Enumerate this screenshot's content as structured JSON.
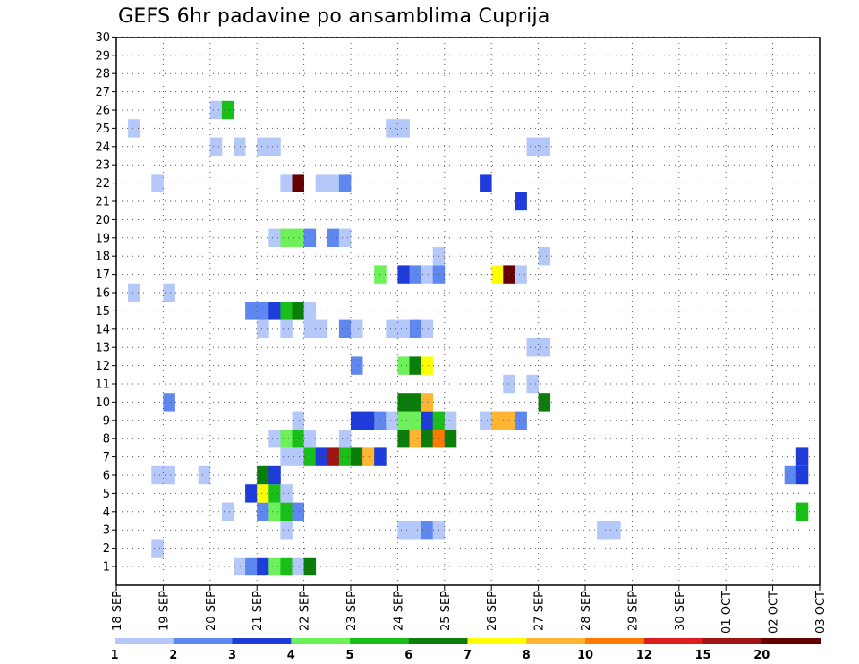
{
  "title": "GEFS 6hr padavine po ansamblima Cuprija",
  "chart_data": {
    "type": "heatmap",
    "title": "GEFS 6hr padavine po ansamblima Cuprija",
    "xlabel": "",
    "ylabel": "",
    "x_tick_labels": [
      "18 SEP",
      "19 SEP",
      "20 SEP",
      "21 SEP",
      "22 SEP",
      "23 SEP",
      "24 SEP",
      "25 SEP",
      "26 SEP",
      "27 SEP",
      "28 SEP",
      "29 SEP",
      "30 SEP",
      "01 OCT",
      "02 OCT",
      "03 OCT"
    ],
    "y_tick_labels": [
      "1",
      "2",
      "3",
      "4",
      "5",
      "6",
      "7",
      "8",
      "9",
      "10",
      "11",
      "12",
      "13",
      "14",
      "15",
      "16",
      "17",
      "18",
      "19",
      "20",
      "21",
      "22",
      "23",
      "24",
      "25",
      "26",
      "27",
      "28",
      "29",
      "30"
    ],
    "time_step_hours": 6,
    "steps_per_day": 4,
    "ylim": [
      1,
      30
    ],
    "grid": true,
    "legend_placement": "bottom",
    "colorbar": {
      "tick_labels": [
        "1",
        "2",
        "3",
        "4",
        "5",
        "6",
        "7",
        "8",
        "10",
        "12",
        "15",
        "20"
      ],
      "colors": [
        "#b4c8fa",
        "#5f87f0",
        "#1e3cdc",
        "#6ef05a",
        "#19be19",
        "#0a7d0a",
        "#ffff00",
        "#ffb432",
        "#ff7800",
        "#dc1e1e",
        "#a01414",
        "#640000"
      ]
    },
    "cells": [
      [
        2.5,
        1,
        0
      ],
      [
        2.75,
        1,
        1
      ],
      [
        3,
        1,
        2
      ],
      [
        3.25,
        1,
        3
      ],
      [
        3.5,
        1,
        4
      ],
      [
        3.75,
        1,
        0
      ],
      [
        4,
        1,
        5
      ],
      [
        0.75,
        2,
        0
      ],
      [
        3.5,
        3,
        0
      ],
      [
        6.0,
        3,
        0
      ],
      [
        6.25,
        3,
        0
      ],
      [
        6.5,
        3,
        1
      ],
      [
        6.75,
        3,
        0
      ],
      [
        10.25,
        3,
        0
      ],
      [
        10.5,
        3,
        0
      ],
      [
        2.25,
        4,
        0
      ],
      [
        3,
        4,
        1
      ],
      [
        3.25,
        4,
        3
      ],
      [
        3.5,
        4,
        4
      ],
      [
        3.75,
        4,
        1
      ],
      [
        14.5,
        4,
        4
      ],
      [
        2.75,
        5,
        2
      ],
      [
        3,
        5,
        6
      ],
      [
        3.25,
        5,
        4
      ],
      [
        3.5,
        5,
        0
      ],
      [
        0.75,
        6,
        0
      ],
      [
        1.0,
        6,
        0
      ],
      [
        1.75,
        6,
        0
      ],
      [
        3,
        6,
        5
      ],
      [
        3.25,
        6,
        2
      ],
      [
        14.25,
        6,
        1
      ],
      [
        14.5,
        6,
        2
      ],
      [
        3.5,
        7,
        0
      ],
      [
        3.75,
        7,
        0
      ],
      [
        4,
        7,
        4
      ],
      [
        4.25,
        7,
        2
      ],
      [
        4.5,
        7,
        10
      ],
      [
        4.75,
        7,
        4
      ],
      [
        5,
        7,
        5
      ],
      [
        5.25,
        7,
        7
      ],
      [
        5.5,
        7,
        2
      ],
      [
        14.5,
        7,
        2
      ],
      [
        4.75,
        8,
        0
      ],
      [
        3.25,
        8,
        0
      ],
      [
        3.5,
        8,
        3
      ],
      [
        3.75,
        8,
        4
      ],
      [
        4,
        8,
        0
      ],
      [
        6,
        8,
        5
      ],
      [
        6.25,
        8,
        7
      ],
      [
        6.5,
        8,
        5
      ],
      [
        6.75,
        8,
        8
      ],
      [
        7,
        8,
        5
      ],
      [
        3.75,
        9,
        0
      ],
      [
        5,
        9,
        2
      ],
      [
        5.25,
        9,
        2
      ],
      [
        5.5,
        9,
        1
      ],
      [
        5.75,
        9,
        0
      ],
      [
        6,
        9,
        3
      ],
      [
        6.25,
        9,
        3
      ],
      [
        6.5,
        9,
        2
      ],
      [
        6.75,
        9,
        4
      ],
      [
        7,
        9,
        0
      ],
      [
        7.75,
        9,
        0
      ],
      [
        8,
        9,
        7
      ],
      [
        8.25,
        9,
        7
      ],
      [
        8.5,
        9,
        1
      ],
      [
        1.0,
        10,
        1
      ],
      [
        6,
        10,
        5
      ],
      [
        6.25,
        10,
        5
      ],
      [
        6.5,
        10,
        7
      ],
      [
        9.0,
        10,
        5
      ],
      [
        8.25,
        11,
        0
      ],
      [
        8.75,
        11,
        0
      ],
      [
        5,
        12,
        1
      ],
      [
        6,
        12,
        3
      ],
      [
        6.25,
        12,
        5
      ],
      [
        6.5,
        12,
        6
      ],
      [
        8.75,
        13,
        0
      ],
      [
        9.0,
        13,
        0
      ],
      [
        3.5,
        14,
        0
      ],
      [
        4,
        14,
        0
      ],
      [
        4.25,
        14,
        0
      ],
      [
        4.75,
        14,
        1
      ],
      [
        5,
        14,
        0
      ],
      [
        5.75,
        14,
        0
      ],
      [
        6,
        14,
        7
      ],
      [
        6.25,
        14,
        1
      ],
      [
        6.5,
        14,
        0
      ],
      [
        3.0,
        14,
        0
      ],
      [
        6.0,
        14,
        0
      ],
      [
        3,
        15,
        1
      ],
      [
        3.25,
        15,
        2
      ],
      [
        3.5,
        15,
        4
      ],
      [
        3.75,
        15,
        5
      ],
      [
        4,
        15,
        0
      ],
      [
        2.75,
        15,
        1
      ],
      [
        0.25,
        16,
        0
      ],
      [
        1.0,
        16,
        0
      ],
      [
        5.5,
        17,
        3
      ],
      [
        6,
        17,
        2
      ],
      [
        6.25,
        17,
        1
      ],
      [
        6.5,
        17,
        0
      ],
      [
        6.75,
        17,
        1
      ],
      [
        8.0,
        17,
        6
      ],
      [
        8.25,
        17,
        11
      ],
      [
        8.5,
        17,
        0
      ],
      [
        6.75,
        18,
        0
      ],
      [
        9.0,
        18,
        0
      ],
      [
        3.25,
        19,
        0
      ],
      [
        3.5,
        19,
        3
      ],
      [
        3.75,
        19,
        3
      ],
      [
        4,
        19,
        1
      ],
      [
        4.5,
        19,
        1
      ],
      [
        4.75,
        19,
        0
      ],
      [
        8.5,
        21,
        2
      ],
      [
        7.75,
        22,
        2
      ],
      [
        0.75,
        22,
        0
      ],
      [
        3.5,
        22,
        0
      ],
      [
        3.75,
        22,
        11
      ],
      [
        4.25,
        22,
        0
      ],
      [
        4.5,
        22,
        0
      ],
      [
        4.75,
        22,
        1
      ],
      [
        2.0,
        24,
        0
      ],
      [
        2.5,
        24,
        0
      ],
      [
        3.0,
        24,
        0
      ],
      [
        3.25,
        24,
        0
      ],
      [
        8.75,
        24,
        0
      ],
      [
        9.0,
        24,
        0
      ],
      [
        0.25,
        25,
        0
      ],
      [
        5.75,
        25,
        0
      ],
      [
        6.0,
        25,
        0
      ],
      [
        2.0,
        26,
        0
      ],
      [
        2.25,
        26,
        4
      ]
    ]
  }
}
